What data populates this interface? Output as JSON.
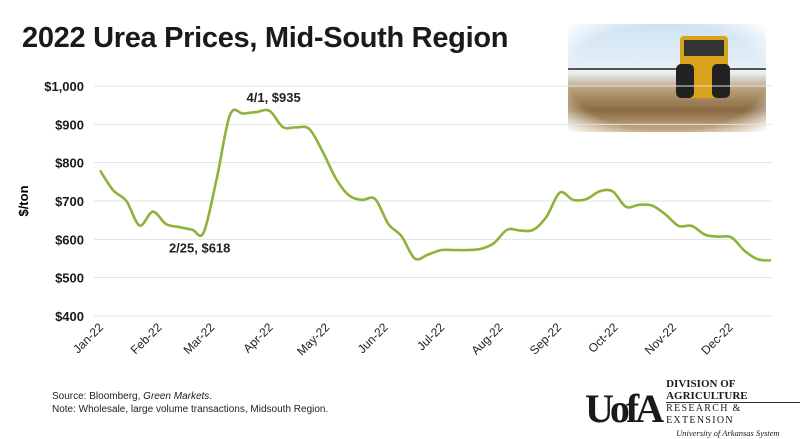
{
  "chart_data": {
    "type": "line",
    "title": "2022 Urea Prices, Mid-South Region",
    "ylabel": "$/ton",
    "xlabel": "",
    "ylim": [
      400,
      1000
    ],
    "yticks": [
      "$400",
      "$500",
      "$600",
      "$700",
      "$800",
      "$900",
      "$1,000"
    ],
    "xticks": [
      "Jan-22",
      "Feb-22",
      "Mar-22",
      "Apr-22",
      "May-22",
      "Jun-22",
      "Jul-22",
      "Aug-22",
      "Sep-22",
      "Oct-22",
      "Nov-22",
      "Dec-22"
    ],
    "grid": "horizontal",
    "line_color": "#8db33a",
    "x": [
      "2022-01-01",
      "2022-01-08",
      "2022-01-15",
      "2022-01-22",
      "2022-01-29",
      "2022-02-05",
      "2022-02-12",
      "2022-02-19",
      "2022-02-25",
      "2022-03-04",
      "2022-03-11",
      "2022-03-18",
      "2022-03-25",
      "2022-04-01",
      "2022-04-08",
      "2022-04-15",
      "2022-04-22",
      "2022-04-29",
      "2022-05-06",
      "2022-05-13",
      "2022-05-20",
      "2022-05-27",
      "2022-06-03",
      "2022-06-10",
      "2022-06-17",
      "2022-06-24",
      "2022-07-01",
      "2022-07-08",
      "2022-07-15",
      "2022-07-22",
      "2022-07-29",
      "2022-08-05",
      "2022-08-12",
      "2022-08-19",
      "2022-08-26",
      "2022-09-02",
      "2022-09-09",
      "2022-09-16",
      "2022-09-23",
      "2022-09-30",
      "2022-10-07",
      "2022-10-14",
      "2022-10-21",
      "2022-10-28",
      "2022-11-04",
      "2022-11-11",
      "2022-11-18",
      "2022-11-25",
      "2022-12-02",
      "2022-12-09",
      "2022-12-16",
      "2022-12-23"
    ],
    "values": [
      780,
      728,
      700,
      636,
      672,
      640,
      632,
      625,
      618,
      760,
      925,
      928,
      932,
      935,
      893,
      892,
      888,
      830,
      760,
      715,
      703,
      705,
      640,
      608,
      550,
      560,
      572,
      572,
      572,
      575,
      590,
      625,
      623,
      625,
      660,
      722,
      703,
      705,
      725,
      725,
      685,
      690,
      688,
      665,
      635,
      635,
      612,
      607,
      605,
      570,
      548,
      545
    ],
    "annotations": [
      {
        "x": "2022-02-25",
        "y": 618,
        "text": "2/25, $618"
      },
      {
        "x": "2022-04-01",
        "y": 935,
        "text": "4/1, $935"
      }
    ]
  },
  "footer": {
    "source_prefix": "Source: Bloomberg, ",
    "source_italic": "Green Markets",
    "source_suffix": ".",
    "note": "Note: Wholesale, large volume transactions, Midsouth Region."
  },
  "logo": {
    "mark": "UofA",
    "line1": "DIVISION OF AGRICULTURE",
    "line2": "RESEARCH & EXTENSION",
    "line3": "University of Arkansas System"
  }
}
